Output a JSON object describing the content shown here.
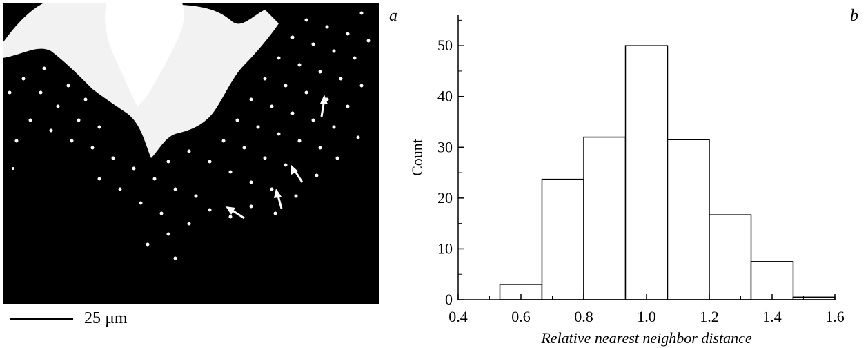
{
  "panel_a": {
    "letter": "a",
    "scale_label": "25 µm"
  },
  "chart_data": {
    "type": "bar",
    "panel_letter": "b",
    "xlabel": "Relative nearest neighbor distance",
    "ylabel": "Count",
    "xlim": [
      0.4,
      1.6
    ],
    "ylim": [
      0,
      56
    ],
    "x_ticks": [
      "0.4",
      "0.6",
      "0.8",
      "1.0",
      "1.2",
      "1.4",
      "1.6"
    ],
    "y_ticks": [
      "0",
      "10",
      "20",
      "30",
      "40",
      "50"
    ],
    "bins": [
      {
        "x0": 0.533,
        "x1": 0.667,
        "count": 3
      },
      {
        "x0": 0.667,
        "x1": 0.8,
        "count": 23.7
      },
      {
        "x0": 0.8,
        "x1": 0.933,
        "count": 32
      },
      {
        "x0": 0.933,
        "x1": 1.067,
        "count": 50
      },
      {
        "x0": 1.067,
        "x1": 1.2,
        "count": 31.5
      },
      {
        "x0": 1.2,
        "x1": 1.333,
        "count": 16.7
      },
      {
        "x0": 1.333,
        "x1": 1.467,
        "count": 7.5
      },
      {
        "x0": 1.467,
        "x1": 1.6,
        "count": 0.5
      }
    ],
    "colors": {
      "bar_fill": "#ffffff",
      "bar_stroke": "#000000"
    }
  }
}
